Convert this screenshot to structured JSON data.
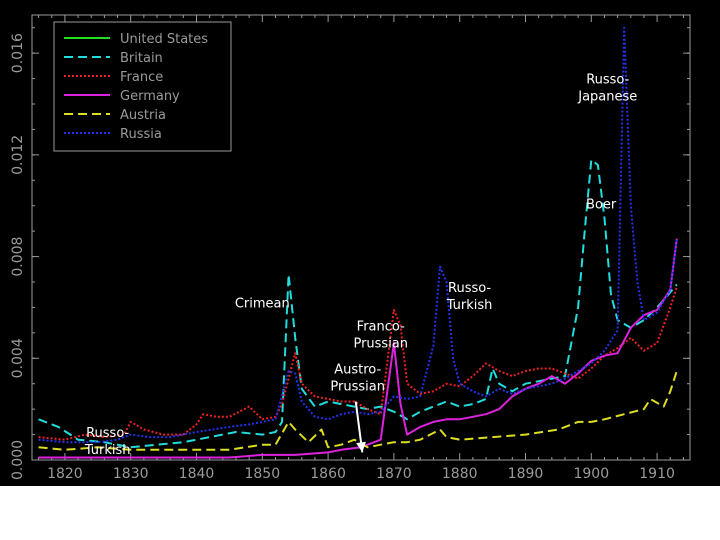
{
  "page": {
    "background": "#ffffff",
    "plot_background": "#000000",
    "axis_color": "#9a9a9a"
  },
  "chart_data": {
    "type": "line",
    "title": "",
    "xlabel": "",
    "ylabel": "",
    "xlim": [
      1815,
      1915
    ],
    "ylim": [
      0,
      0.0175
    ],
    "grid": false,
    "legend_position": "top-left",
    "x_ticks": [
      1820,
      1830,
      1840,
      1850,
      1860,
      1870,
      1880,
      1890,
      1900,
      1910
    ],
    "x_tick_labels": [
      "1820",
      "1830",
      "1840",
      "1850",
      "1860",
      "1870",
      "1880",
      "1890",
      "1900",
      "1910"
    ],
    "y_ticks": [
      0,
      0.004,
      0.008,
      0.012,
      0.016
    ],
    "y_tick_labels": [
      "0.000",
      "0.004",
      "0.008",
      "0.012",
      "0.016"
    ],
    "series": [
      {
        "name": "United States",
        "color": "#22dd22",
        "dash": "solid",
        "points": []
      },
      {
        "name": "Britain",
        "color": "#22dddd",
        "dash": "dashed",
        "points": [
          [
            1816,
            0.0016
          ],
          [
            1819,
            0.0013
          ],
          [
            1822,
            0.0008
          ],
          [
            1826,
            0.0007
          ],
          [
            1830,
            0.0005
          ],
          [
            1834,
            0.0006
          ],
          [
            1838,
            0.0007
          ],
          [
            1842,
            0.0009
          ],
          [
            1846,
            0.0011
          ],
          [
            1850,
            0.001
          ],
          [
            1852,
            0.0011
          ],
          [
            1853,
            0.0015
          ],
          [
            1854,
            0.0073
          ],
          [
            1855,
            0.0048
          ],
          [
            1856,
            0.0028
          ],
          [
            1858,
            0.0021
          ],
          [
            1860,
            0.0023
          ],
          [
            1862,
            0.0022
          ],
          [
            1864,
            0.0021
          ],
          [
            1866,
            0.002
          ],
          [
            1868,
            0.0021
          ],
          [
            1870,
            0.0019
          ],
          [
            1872,
            0.0016
          ],
          [
            1874,
            0.0019
          ],
          [
            1876,
            0.0021
          ],
          [
            1878,
            0.0023
          ],
          [
            1880,
            0.0021
          ],
          [
            1882,
            0.0022
          ],
          [
            1884,
            0.0024
          ],
          [
            1885,
            0.0036
          ],
          [
            1886,
            0.003
          ],
          [
            1888,
            0.0027
          ],
          [
            1890,
            0.003
          ],
          [
            1892,
            0.0031
          ],
          [
            1894,
            0.0032
          ],
          [
            1896,
            0.0033
          ],
          [
            1898,
            0.006
          ],
          [
            1899,
            0.009
          ],
          [
            1900,
            0.0118
          ],
          [
            1901,
            0.0116
          ],
          [
            1902,
            0.0095
          ],
          [
            1903,
            0.0065
          ],
          [
            1904,
            0.0055
          ],
          [
            1906,
            0.0052
          ],
          [
            1908,
            0.0055
          ],
          [
            1910,
            0.006
          ],
          [
            1912,
            0.0066
          ],
          [
            1913,
            0.0069
          ]
        ]
      },
      {
        "name": "France",
        "color": "#ee2222",
        "dash": "dotted",
        "points": [
          [
            1816,
            0.0009
          ],
          [
            1820,
            0.0008
          ],
          [
            1823,
            0.001
          ],
          [
            1826,
            0.0009
          ],
          [
            1829,
            0.001
          ],
          [
            1830,
            0.0015
          ],
          [
            1832,
            0.0012
          ],
          [
            1835,
            0.001
          ],
          [
            1838,
            0.001
          ],
          [
            1840,
            0.0014
          ],
          [
            1841,
            0.0018
          ],
          [
            1843,
            0.0017
          ],
          [
            1845,
            0.0017
          ],
          [
            1848,
            0.0021
          ],
          [
            1850,
            0.0016
          ],
          [
            1852,
            0.0017
          ],
          [
            1853,
            0.0022
          ],
          [
            1855,
            0.0042
          ],
          [
            1856,
            0.003
          ],
          [
            1858,
            0.0025
          ],
          [
            1860,
            0.0024
          ],
          [
            1862,
            0.0023
          ],
          [
            1864,
            0.0023
          ],
          [
            1866,
            0.002
          ],
          [
            1868,
            0.0018
          ],
          [
            1870,
            0.0059
          ],
          [
            1871,
            0.0053
          ],
          [
            1872,
            0.003
          ],
          [
            1874,
            0.0026
          ],
          [
            1876,
            0.0027
          ],
          [
            1878,
            0.003
          ],
          [
            1880,
            0.0029
          ],
          [
            1882,
            0.0033
          ],
          [
            1884,
            0.0038
          ],
          [
            1886,
            0.0035
          ],
          [
            1888,
            0.0033
          ],
          [
            1890,
            0.0035
          ],
          [
            1892,
            0.0036
          ],
          [
            1894,
            0.0036
          ],
          [
            1896,
            0.0034
          ],
          [
            1898,
            0.0032
          ],
          [
            1900,
            0.0036
          ],
          [
            1902,
            0.0041
          ],
          [
            1904,
            0.0044
          ],
          [
            1906,
            0.0048
          ],
          [
            1908,
            0.0043
          ],
          [
            1910,
            0.0046
          ],
          [
            1912,
            0.006
          ],
          [
            1913,
            0.0068
          ]
        ]
      },
      {
        "name": "Germany",
        "color": "#dd22dd",
        "dash": "solid",
        "points": [
          [
            1816,
            0.0001
          ],
          [
            1820,
            0.0001
          ],
          [
            1825,
            0.0001
          ],
          [
            1830,
            0.0001
          ],
          [
            1835,
            0.0001
          ],
          [
            1840,
            0.0001
          ],
          [
            1845,
            0.0001
          ],
          [
            1850,
            0.0002
          ],
          [
            1855,
            0.0002
          ],
          [
            1860,
            0.0003
          ],
          [
            1862,
            0.0004
          ],
          [
            1865,
            0.0005
          ],
          [
            1866,
            0.0006
          ],
          [
            1868,
            0.0008
          ],
          [
            1870,
            0.0046
          ],
          [
            1871,
            0.0022
          ],
          [
            1872,
            0.001
          ],
          [
            1874,
            0.0013
          ],
          [
            1876,
            0.0015
          ],
          [
            1878,
            0.0016
          ],
          [
            1880,
            0.0016
          ],
          [
            1882,
            0.0017
          ],
          [
            1884,
            0.0018
          ],
          [
            1886,
            0.002
          ],
          [
            1888,
            0.0025
          ],
          [
            1890,
            0.0028
          ],
          [
            1892,
            0.003
          ],
          [
            1894,
            0.0033
          ],
          [
            1896,
            0.003
          ],
          [
            1898,
            0.0034
          ],
          [
            1900,
            0.0039
          ],
          [
            1902,
            0.0041
          ],
          [
            1904,
            0.0042
          ],
          [
            1906,
            0.0052
          ],
          [
            1908,
            0.0057
          ],
          [
            1910,
            0.0059
          ],
          [
            1912,
            0.0067
          ],
          [
            1913,
            0.0087
          ]
        ]
      },
      {
        "name": "Austria",
        "color": "#dddd22",
        "dash": "dashed",
        "points": [
          [
            1816,
            0.0005
          ],
          [
            1820,
            0.0004
          ],
          [
            1825,
            0.0005
          ],
          [
            1830,
            0.0004
          ],
          [
            1835,
            0.0004
          ],
          [
            1840,
            0.0004
          ],
          [
            1845,
            0.0004
          ],
          [
            1850,
            0.0006
          ],
          [
            1852,
            0.0006
          ],
          [
            1854,
            0.0015
          ],
          [
            1855,
            0.0012
          ],
          [
            1857,
            0.0007
          ],
          [
            1859,
            0.0012
          ],
          [
            1860,
            0.0005
          ],
          [
            1862,
            0.0006
          ],
          [
            1864,
            0.0008
          ],
          [
            1866,
            0.0005
          ],
          [
            1868,
            0.0006
          ],
          [
            1870,
            0.0007
          ],
          [
            1872,
            0.0007
          ],
          [
            1874,
            0.0008
          ],
          [
            1877,
            0.0012
          ],
          [
            1878,
            0.0009
          ],
          [
            1880,
            0.0008
          ],
          [
            1885,
            0.0009
          ],
          [
            1890,
            0.001
          ],
          [
            1895,
            0.0012
          ],
          [
            1898,
            0.0015
          ],
          [
            1900,
            0.0015
          ],
          [
            1902,
            0.0016
          ],
          [
            1905,
            0.0018
          ],
          [
            1908,
            0.002
          ],
          [
            1909,
            0.0024
          ],
          [
            1911,
            0.0021
          ],
          [
            1912,
            0.0027
          ],
          [
            1913,
            0.0035
          ]
        ]
      },
      {
        "name": "Russia",
        "color": "#2233ee",
        "dash": "dotted",
        "points": [
          [
            1816,
            0.0008
          ],
          [
            1820,
            0.0007
          ],
          [
            1825,
            0.0007
          ],
          [
            1828,
            0.0008
          ],
          [
            1830,
            0.001
          ],
          [
            1833,
            0.0009
          ],
          [
            1836,
            0.0009
          ],
          [
            1840,
            0.0011
          ],
          [
            1845,
            0.0013
          ],
          [
            1848,
            0.0014
          ],
          [
            1850,
            0.0015
          ],
          [
            1852,
            0.0016
          ],
          [
            1854,
            0.0035
          ],
          [
            1855,
            0.0034
          ],
          [
            1856,
            0.0023
          ],
          [
            1858,
            0.0017
          ],
          [
            1860,
            0.0016
          ],
          [
            1862,
            0.0018
          ],
          [
            1864,
            0.0019
          ],
          [
            1866,
            0.0018
          ],
          [
            1868,
            0.0019
          ],
          [
            1870,
            0.0025
          ],
          [
            1872,
            0.0024
          ],
          [
            1874,
            0.0025
          ],
          [
            1876,
            0.0045
          ],
          [
            1877,
            0.0076
          ],
          [
            1878,
            0.007
          ],
          [
            1879,
            0.004
          ],
          [
            1880,
            0.003
          ],
          [
            1882,
            0.0027
          ],
          [
            1884,
            0.0025
          ],
          [
            1886,
            0.0028
          ],
          [
            1888,
            0.0026
          ],
          [
            1890,
            0.0028
          ],
          [
            1892,
            0.0029
          ],
          [
            1894,
            0.003
          ],
          [
            1896,
            0.0032
          ],
          [
            1898,
            0.0035
          ],
          [
            1900,
            0.0038
          ],
          [
            1902,
            0.0043
          ],
          [
            1904,
            0.0051
          ],
          [
            1905,
            0.017
          ],
          [
            1906,
            0.01
          ],
          [
            1907,
            0.007
          ],
          [
            1908,
            0.0055
          ],
          [
            1910,
            0.0058
          ],
          [
            1912,
            0.0067
          ],
          [
            1913,
            0.0087
          ]
        ]
      }
    ],
    "annotations": [
      {
        "lines": [
          "Russo-",
          "Turkish"
        ],
        "x": 1826.5,
        "y": 0.0009
      },
      {
        "lines": [
          "Crimean"
        ],
        "x": 1850.0,
        "y": 0.006
      },
      {
        "lines": [
          "Austro-",
          "Prussian"
        ],
        "x": 1864.5,
        "y": 0.0034
      },
      {
        "lines": [
          "Franco-",
          "Prussian"
        ],
        "x": 1868.0,
        "y": 0.0051
      },
      {
        "lines": [
          "Russo-",
          "Turkish"
        ],
        "x": 1881.5,
        "y": 0.0066
      },
      {
        "lines": [
          "Boer"
        ],
        "x": 1901.5,
        "y": 0.0099
      },
      {
        "lines": [
          "Russo-",
          "Japanese"
        ],
        "x": 1902.5,
        "y": 0.0148
      }
    ],
    "arrow": {
      "from": [
        1864.2,
        0.0023
      ],
      "to": [
        1865.2,
        0.0003
      ],
      "color": "#ffffff"
    }
  }
}
